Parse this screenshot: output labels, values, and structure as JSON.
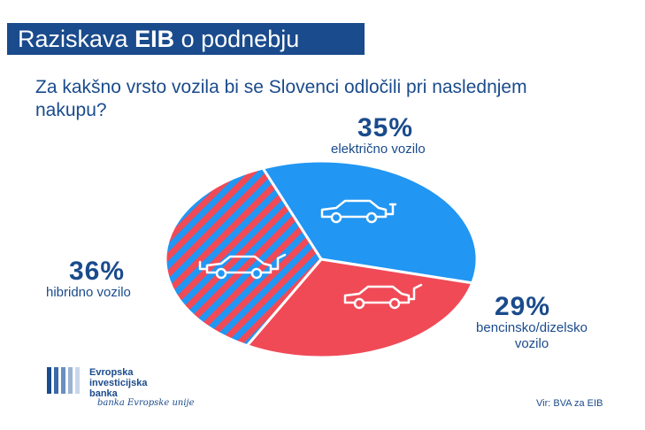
{
  "header": {
    "title_prefix": "Raziskava",
    "title_bold": "EIB",
    "title_suffix": "o podnebju"
  },
  "question": "Za kakšno vrsto vozila bi se Slovenci odločili pri naslednjem nakupu?",
  "chart_data": {
    "type": "pie",
    "slices": [
      {
        "label": "električno vozilo",
        "percent_label": "35%",
        "value": 35,
        "color": "#2196f3",
        "icon": "electric-car-icon"
      },
      {
        "label": "bencinsko/dizelsko vozilo",
        "percent_label": "29%",
        "value": 29,
        "color": "#f04a57",
        "icon": "fuel-car-icon"
      },
      {
        "label": "hibridno vozilo",
        "percent_label": "36%",
        "value": 36,
        "color": "#2196f3",
        "stripe_color": "#f04a57",
        "icon": "hybrid-car-icon"
      }
    ]
  },
  "labels": {
    "electric_pct": "35%",
    "electric_name": "električno vozilo",
    "fuel_pct": "29%",
    "fuel_name_1": "bencinsko/dizelsko",
    "fuel_name_2": "vozilo",
    "hybrid_pct": "36%",
    "hybrid_name": "hibridno vozilo"
  },
  "logo": {
    "line1": "Evropska",
    "line2": "investicijska",
    "line3": "banka",
    "signature": "banka Evropske unije"
  },
  "source": "Vir: BVA za EIB",
  "colors": {
    "brand_blue": "#1a4b8c",
    "electric": "#2196f3",
    "fuel": "#f04a57"
  }
}
